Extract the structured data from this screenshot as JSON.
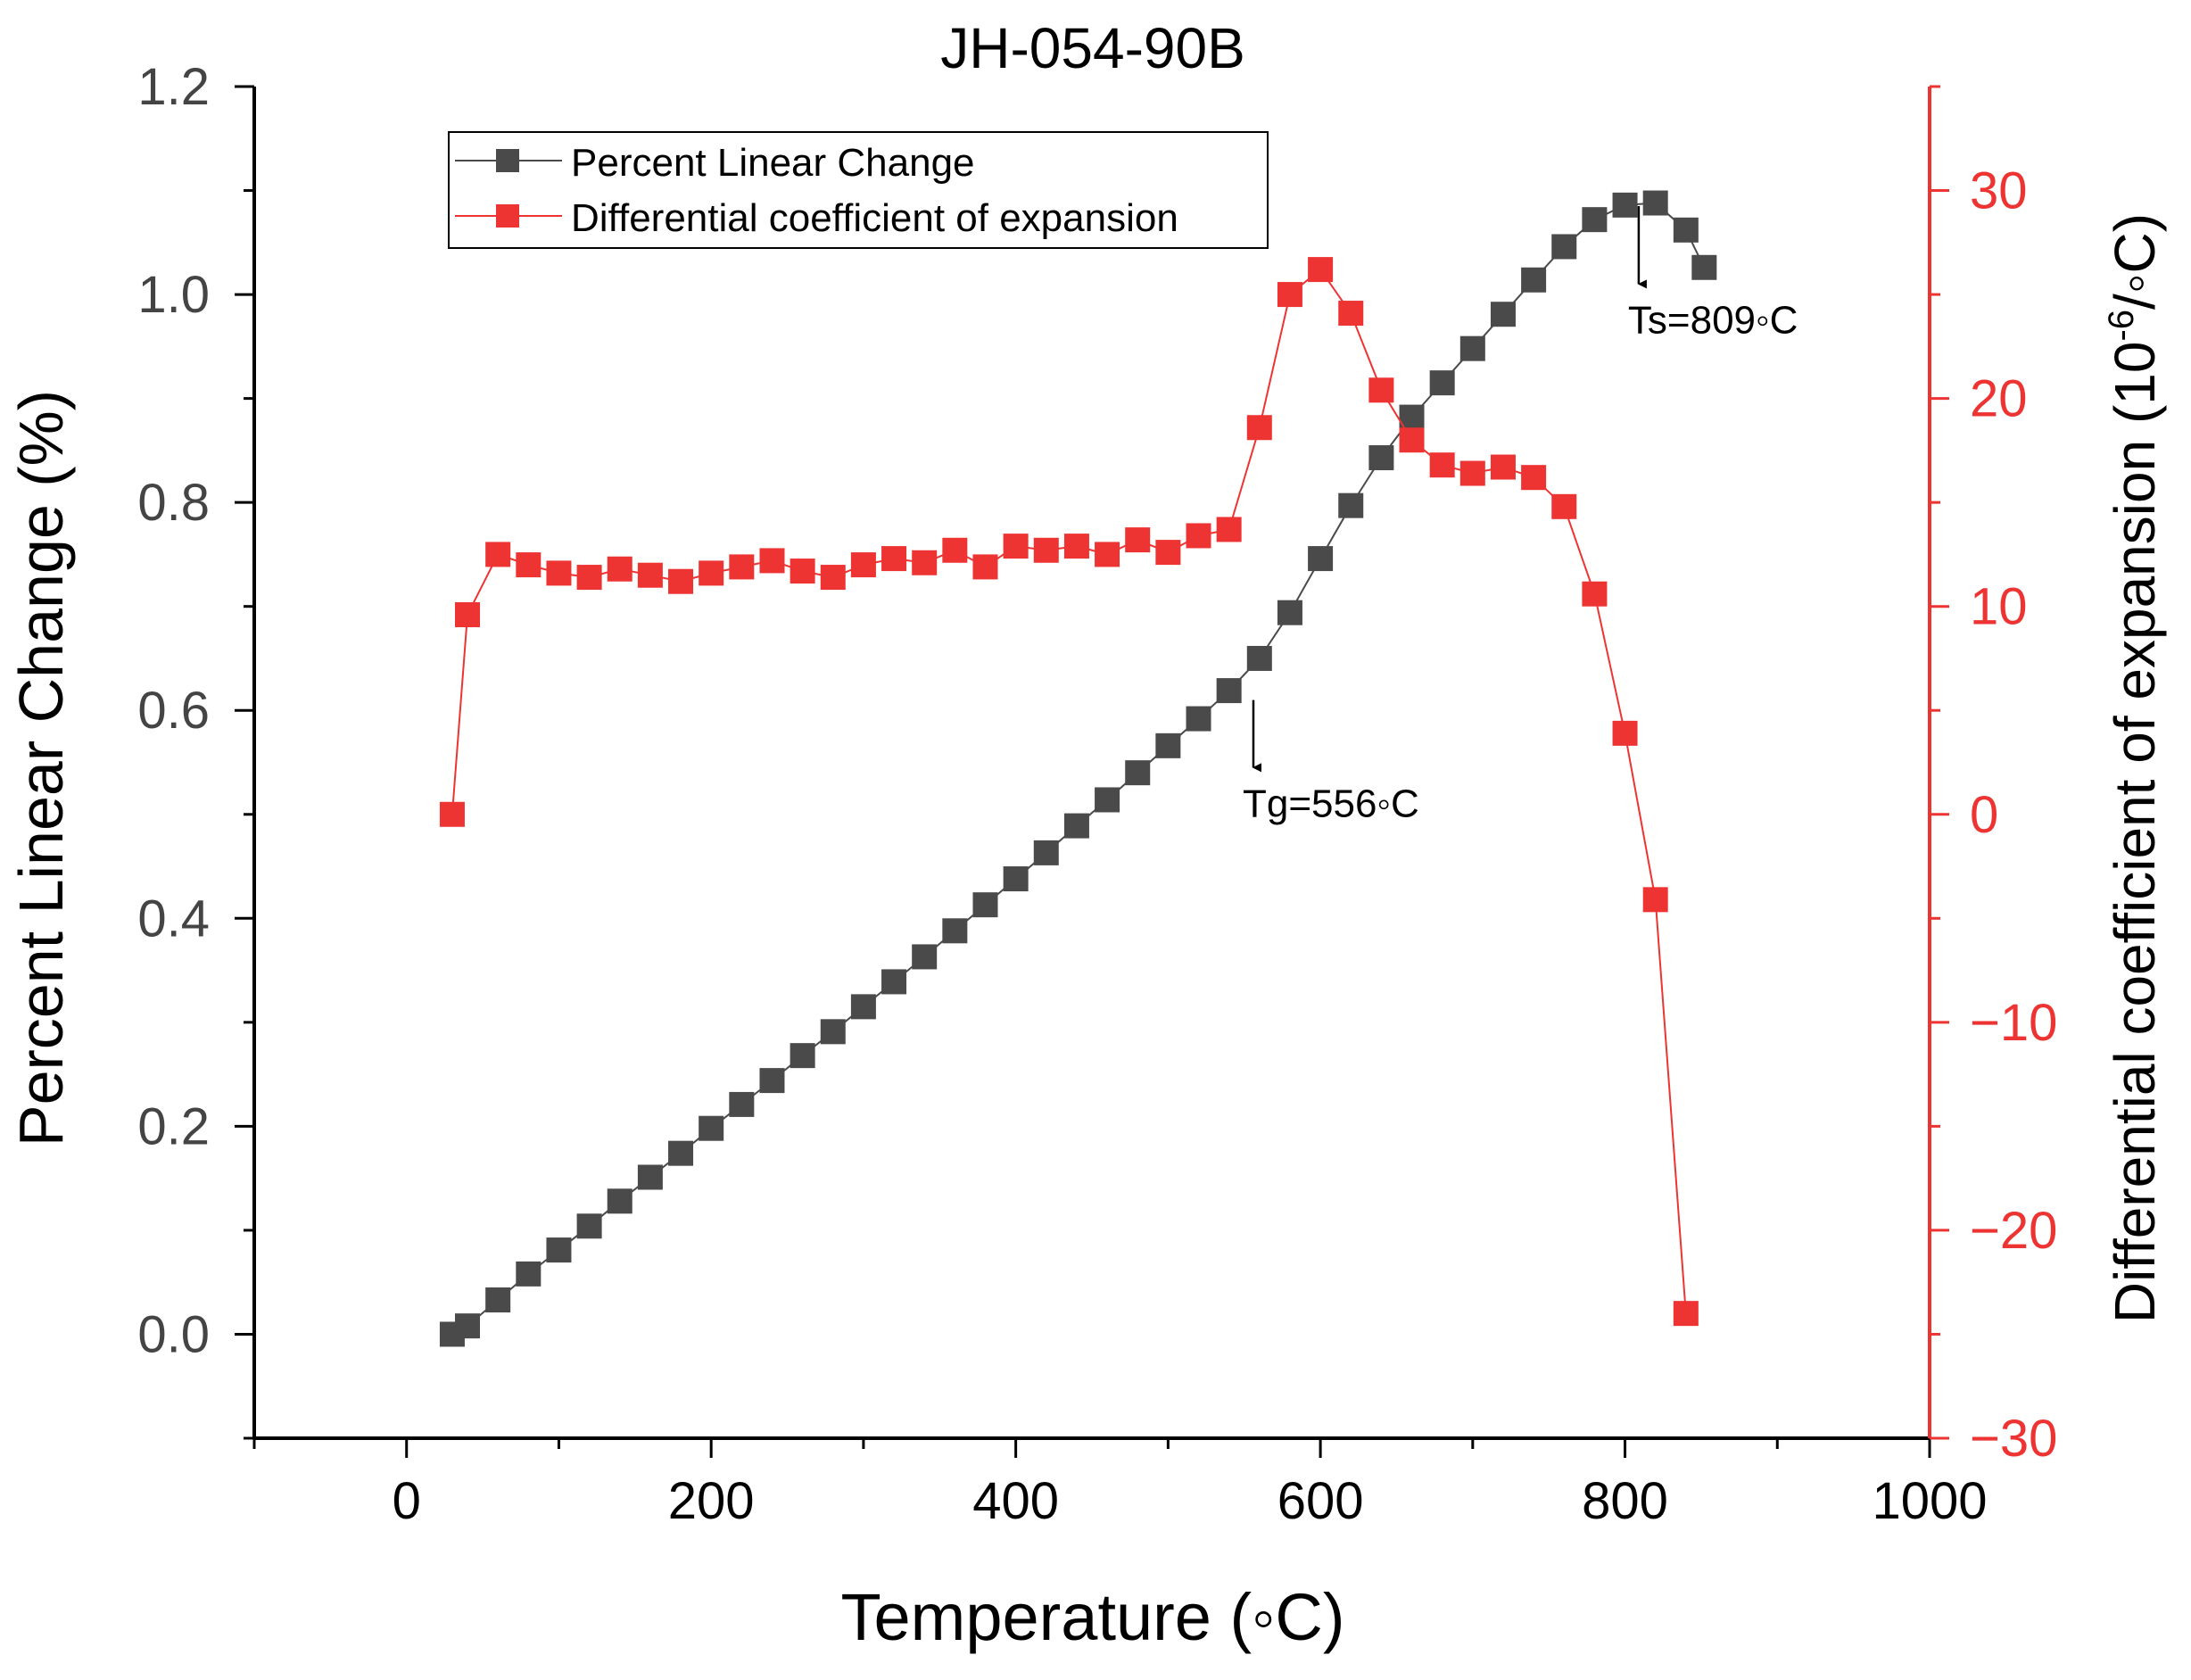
{
  "chart_data": {
    "type": "line",
    "title": "JH-054-90B",
    "xlabel": "Temperature (◦C)",
    "ylabel": "Percent Linear Change (%)",
    "y2label_base": "Differential coefficient of expansion (10",
    "y2label_exp": "-6",
    "y2label_tail": "/◦C)",
    "xlim": [
      -100,
      1000
    ],
    "ylim": [
      -0.1,
      1.2
    ],
    "y2lim": [
      -30,
      35
    ],
    "xticks": [
      0,
      200,
      400,
      600,
      800,
      1000
    ],
    "yticks": [
      0.0,
      0.2,
      0.4,
      0.6,
      0.8,
      1.0,
      1.2
    ],
    "y2ticks": [
      -30,
      -20,
      -10,
      0,
      10,
      20,
      30
    ],
    "xtick_labels": [
      "0",
      "200",
      "400",
      "600",
      "800",
      "1000"
    ],
    "ytick_labels": [
      "0.0",
      "0.2",
      "0.4",
      "0.6",
      "0.8",
      "1.0",
      "1.2"
    ],
    "y2tick_labels": [
      "−30",
      "−20",
      "−10",
      "0",
      "10",
      "20",
      "30"
    ],
    "legend_position": "top-left",
    "series": [
      {
        "name": "Percent Linear Change",
        "axis": "left",
        "color": "#4a4a4a",
        "x": [
          30,
          40,
          60,
          80,
          100,
          120,
          140,
          160,
          180,
          200,
          220,
          240,
          260,
          280,
          300,
          320,
          340,
          360,
          380,
          400,
          420,
          440,
          460,
          480,
          500,
          520,
          540,
          560,
          580,
          600,
          620,
          640,
          660,
          680,
          700,
          720,
          740,
          760,
          780,
          800,
          820,
          840,
          852
        ],
        "y": [
          0.0,
          0.008,
          0.033,
          0.058,
          0.081,
          0.104,
          0.128,
          0.151,
          0.174,
          0.198,
          0.221,
          0.244,
          0.268,
          0.291,
          0.315,
          0.339,
          0.363,
          0.388,
          0.413,
          0.438,
          0.463,
          0.489,
          0.514,
          0.54,
          0.566,
          0.592,
          0.619,
          0.65,
          0.694,
          0.746,
          0.797,
          0.843,
          0.882,
          0.915,
          0.948,
          0.981,
          1.014,
          1.046,
          1.072,
          1.086,
          1.088,
          1.062,
          1.026
        ]
      },
      {
        "name": "Differential coefficient of expansion",
        "axis": "right",
        "color": "#ee3333",
        "x": [
          30,
          40,
          60,
          80,
          100,
          120,
          140,
          160,
          180,
          200,
          220,
          240,
          260,
          280,
          300,
          320,
          340,
          360,
          380,
          400,
          420,
          440,
          460,
          480,
          500,
          520,
          540,
          560,
          580,
          600,
          620,
          640,
          660,
          680,
          700,
          720,
          740,
          760,
          780,
          800,
          820,
          840
        ],
        "y": [
          0.0,
          9.6,
          12.5,
          12.0,
          11.6,
          11.4,
          11.8,
          11.5,
          11.2,
          11.6,
          11.9,
          12.2,
          11.7,
          11.4,
          12.0,
          12.3,
          12.1,
          12.7,
          11.9,
          12.9,
          12.7,
          12.9,
          12.5,
          13.2,
          12.6,
          13.4,
          13.7,
          18.6,
          25.0,
          26.2,
          24.1,
          20.4,
          18.0,
          16.8,
          16.4,
          16.7,
          16.2,
          14.8,
          10.6,
          3.9,
          -4.1,
          -24.0
        ]
      }
    ],
    "annotations": [
      {
        "text": "Tg=556◦C",
        "arrow_x": 556,
        "arrow_from_y": 0.61,
        "arrow_to_y": 0.545,
        "axis": "left"
      },
      {
        "text": "Ts=809◦C",
        "arrow_x": 809,
        "arrow_from_y": 1.085,
        "arrow_to_y": 1.01,
        "axis": "left"
      }
    ]
  }
}
